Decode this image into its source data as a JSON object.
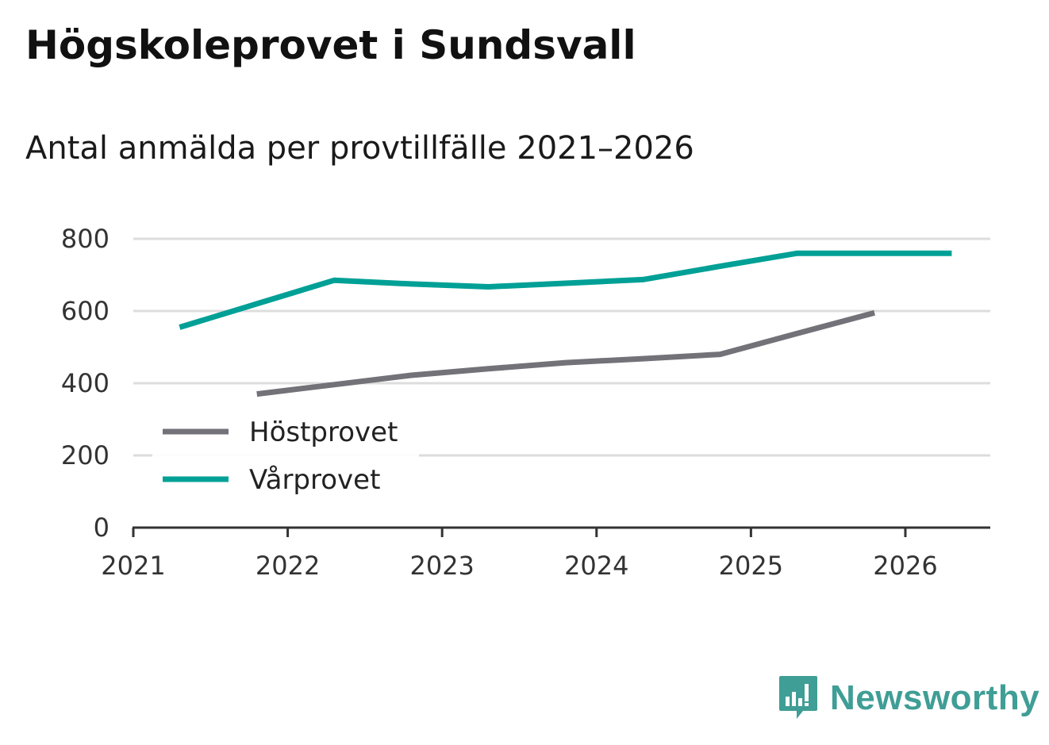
{
  "header": {
    "title": "Högskoleprovet i Sundsvall",
    "subtitle": "Antal anmälda per provtillfälle 2021–2026"
  },
  "brand": {
    "name": "Newsworthy",
    "icon": "newsworthy-logo-icon",
    "color": "#3f9e95"
  },
  "chart_data": {
    "type": "line",
    "title": "Högskoleprovet i Sundsvall",
    "subtitle": "Antal anmälda per provtillfälle 2021–2026",
    "xlabel": "",
    "ylabel": "",
    "xlim": [
      2021,
      2026.55
    ],
    "ylim": [
      0,
      800
    ],
    "x_ticks": [
      "2021",
      "2022",
      "2023",
      "2024",
      "2025",
      "2026"
    ],
    "y_ticks": [
      "0",
      "200",
      "400",
      "600",
      "800"
    ],
    "grid": true,
    "legend_position": "lower-left",
    "series": [
      {
        "name": "Höstprovet",
        "color": "#737278",
        "x": [
          2021.8,
          2022.3,
          2022.8,
          2023.3,
          2023.8,
          2024.3,
          2024.8,
          2025.3,
          2025.8
        ],
        "values": [
          370,
          396,
          422,
          440,
          457,
          468,
          480,
          538,
          595
        ]
      },
      {
        "name": "Vårprovet",
        "color": "#00a096",
        "x": [
          2021.3,
          2021.8,
          2022.3,
          2022.8,
          2023.3,
          2023.8,
          2024.3,
          2024.8,
          2025.3,
          2025.8,
          2026.3
        ],
        "values": [
          555,
          620,
          685,
          675,
          667,
          677,
          687,
          724,
          760,
          760,
          760
        ]
      }
    ]
  }
}
